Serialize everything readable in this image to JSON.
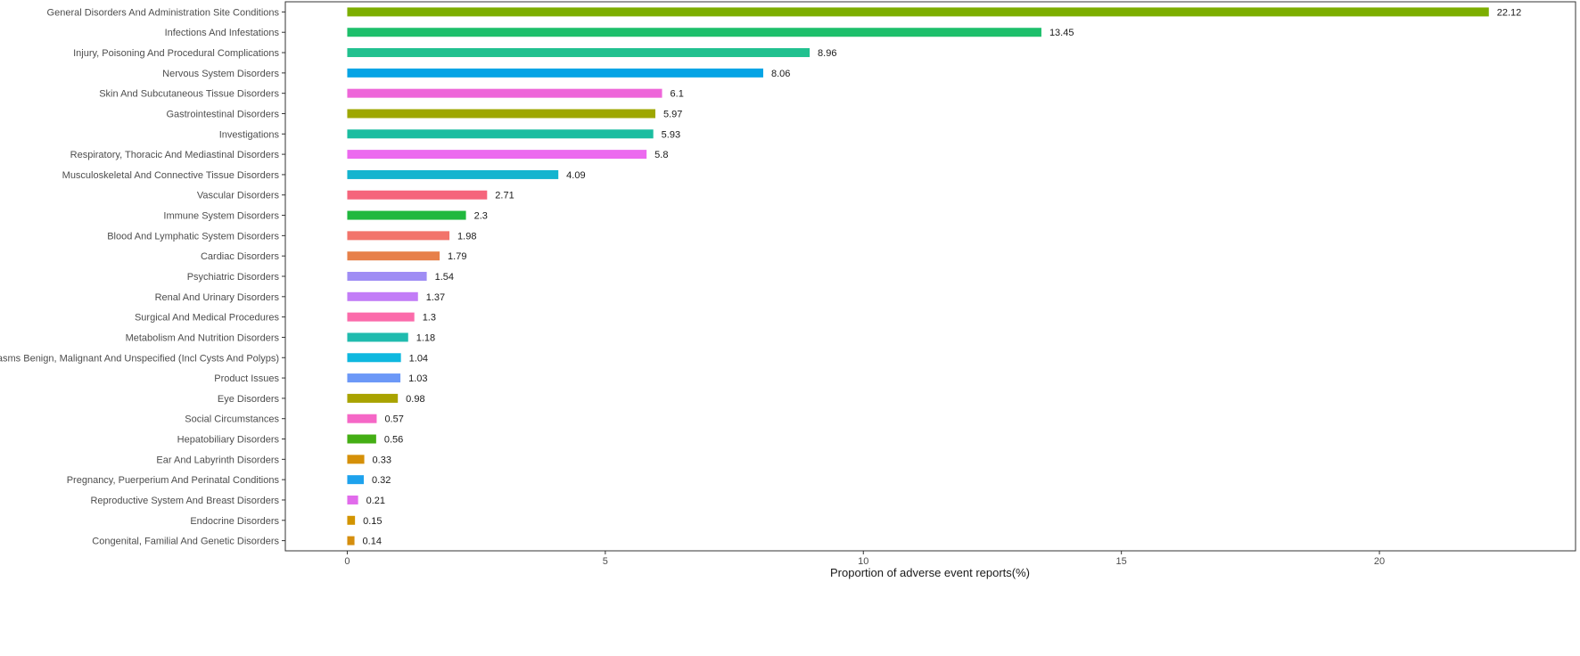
{
  "chart_data": {
    "type": "bar",
    "orientation": "horizontal",
    "xlabel": "Proportion of adverse event reports(%)",
    "ylabel": "",
    "xlim": [
      -1.2,
      23.8
    ],
    "xticks": [
      0,
      5,
      10,
      15,
      20
    ],
    "grid": false,
    "legend": "none",
    "categories": [
      "General Disorders And Administration Site Conditions",
      "Infections And Infestations",
      "Injury, Poisoning And Procedural Complications",
      "Nervous System Disorders",
      "Skin And Subcutaneous Tissue Disorders",
      "Gastrointestinal Disorders",
      "Investigations",
      "Respiratory, Thoracic And Mediastinal Disorders",
      "Musculoskeletal And Connective Tissue Disorders",
      "Vascular Disorders",
      "Immune System Disorders",
      "Blood And Lymphatic System Disorders",
      "Cardiac Disorders",
      "Psychiatric Disorders",
      "Renal And Urinary Disorders",
      "Surgical And Medical Procedures",
      "Metabolism And Nutrition Disorders",
      "Neoplasms Benign, Malignant And Unspecified (Incl Cysts And Polyps)",
      "Product Issues",
      "Eye Disorders",
      "Social Circumstances",
      "Hepatobiliary Disorders",
      "Ear And Labyrinth Disorders",
      "Pregnancy, Puerperium And Perinatal Conditions",
      "Reproductive System And Breast Disorders",
      "Endocrine Disorders",
      "Congenital, Familial And Genetic Disorders"
    ],
    "values": [
      22.12,
      13.45,
      8.96,
      8.06,
      6.1,
      5.97,
      5.93,
      5.8,
      4.09,
      2.71,
      2.3,
      1.98,
      1.79,
      1.54,
      1.37,
      1.3,
      1.18,
      1.04,
      1.03,
      0.98,
      0.57,
      0.56,
      0.33,
      0.32,
      0.21,
      0.15,
      0.14
    ],
    "value_labels": [
      "22.12",
      "13.45",
      "8.96",
      "8.06",
      "6.1",
      "5.97",
      "5.93",
      "5.8",
      "4.09",
      "2.71",
      "2.3",
      "1.98",
      "1.79",
      "1.54",
      "1.37",
      "1.3",
      "1.18",
      "1.04",
      "1.03",
      "0.98",
      "0.57",
      "0.56",
      "0.33",
      "0.32",
      "0.21",
      "0.15",
      "0.14"
    ],
    "colors": [
      "#7CAE00",
      "#1DBF6B",
      "#21C18F",
      "#06A4E5",
      "#EE66D9",
      "#9EA700",
      "#1BBDA0",
      "#EC69EF",
      "#14B4CF",
      "#F5657C",
      "#20B83E",
      "#F2746B",
      "#E7804A",
      "#9F8DF4",
      "#C27DF7",
      "#FB6BAA",
      "#20BBAE",
      "#0EB8DF",
      "#6C98F7",
      "#A9A300",
      "#F567C6",
      "#44AE14",
      "#D59008",
      "#1EA2ED",
      "#E16BEB",
      "#D29400",
      "#D58E0E"
    ]
  }
}
